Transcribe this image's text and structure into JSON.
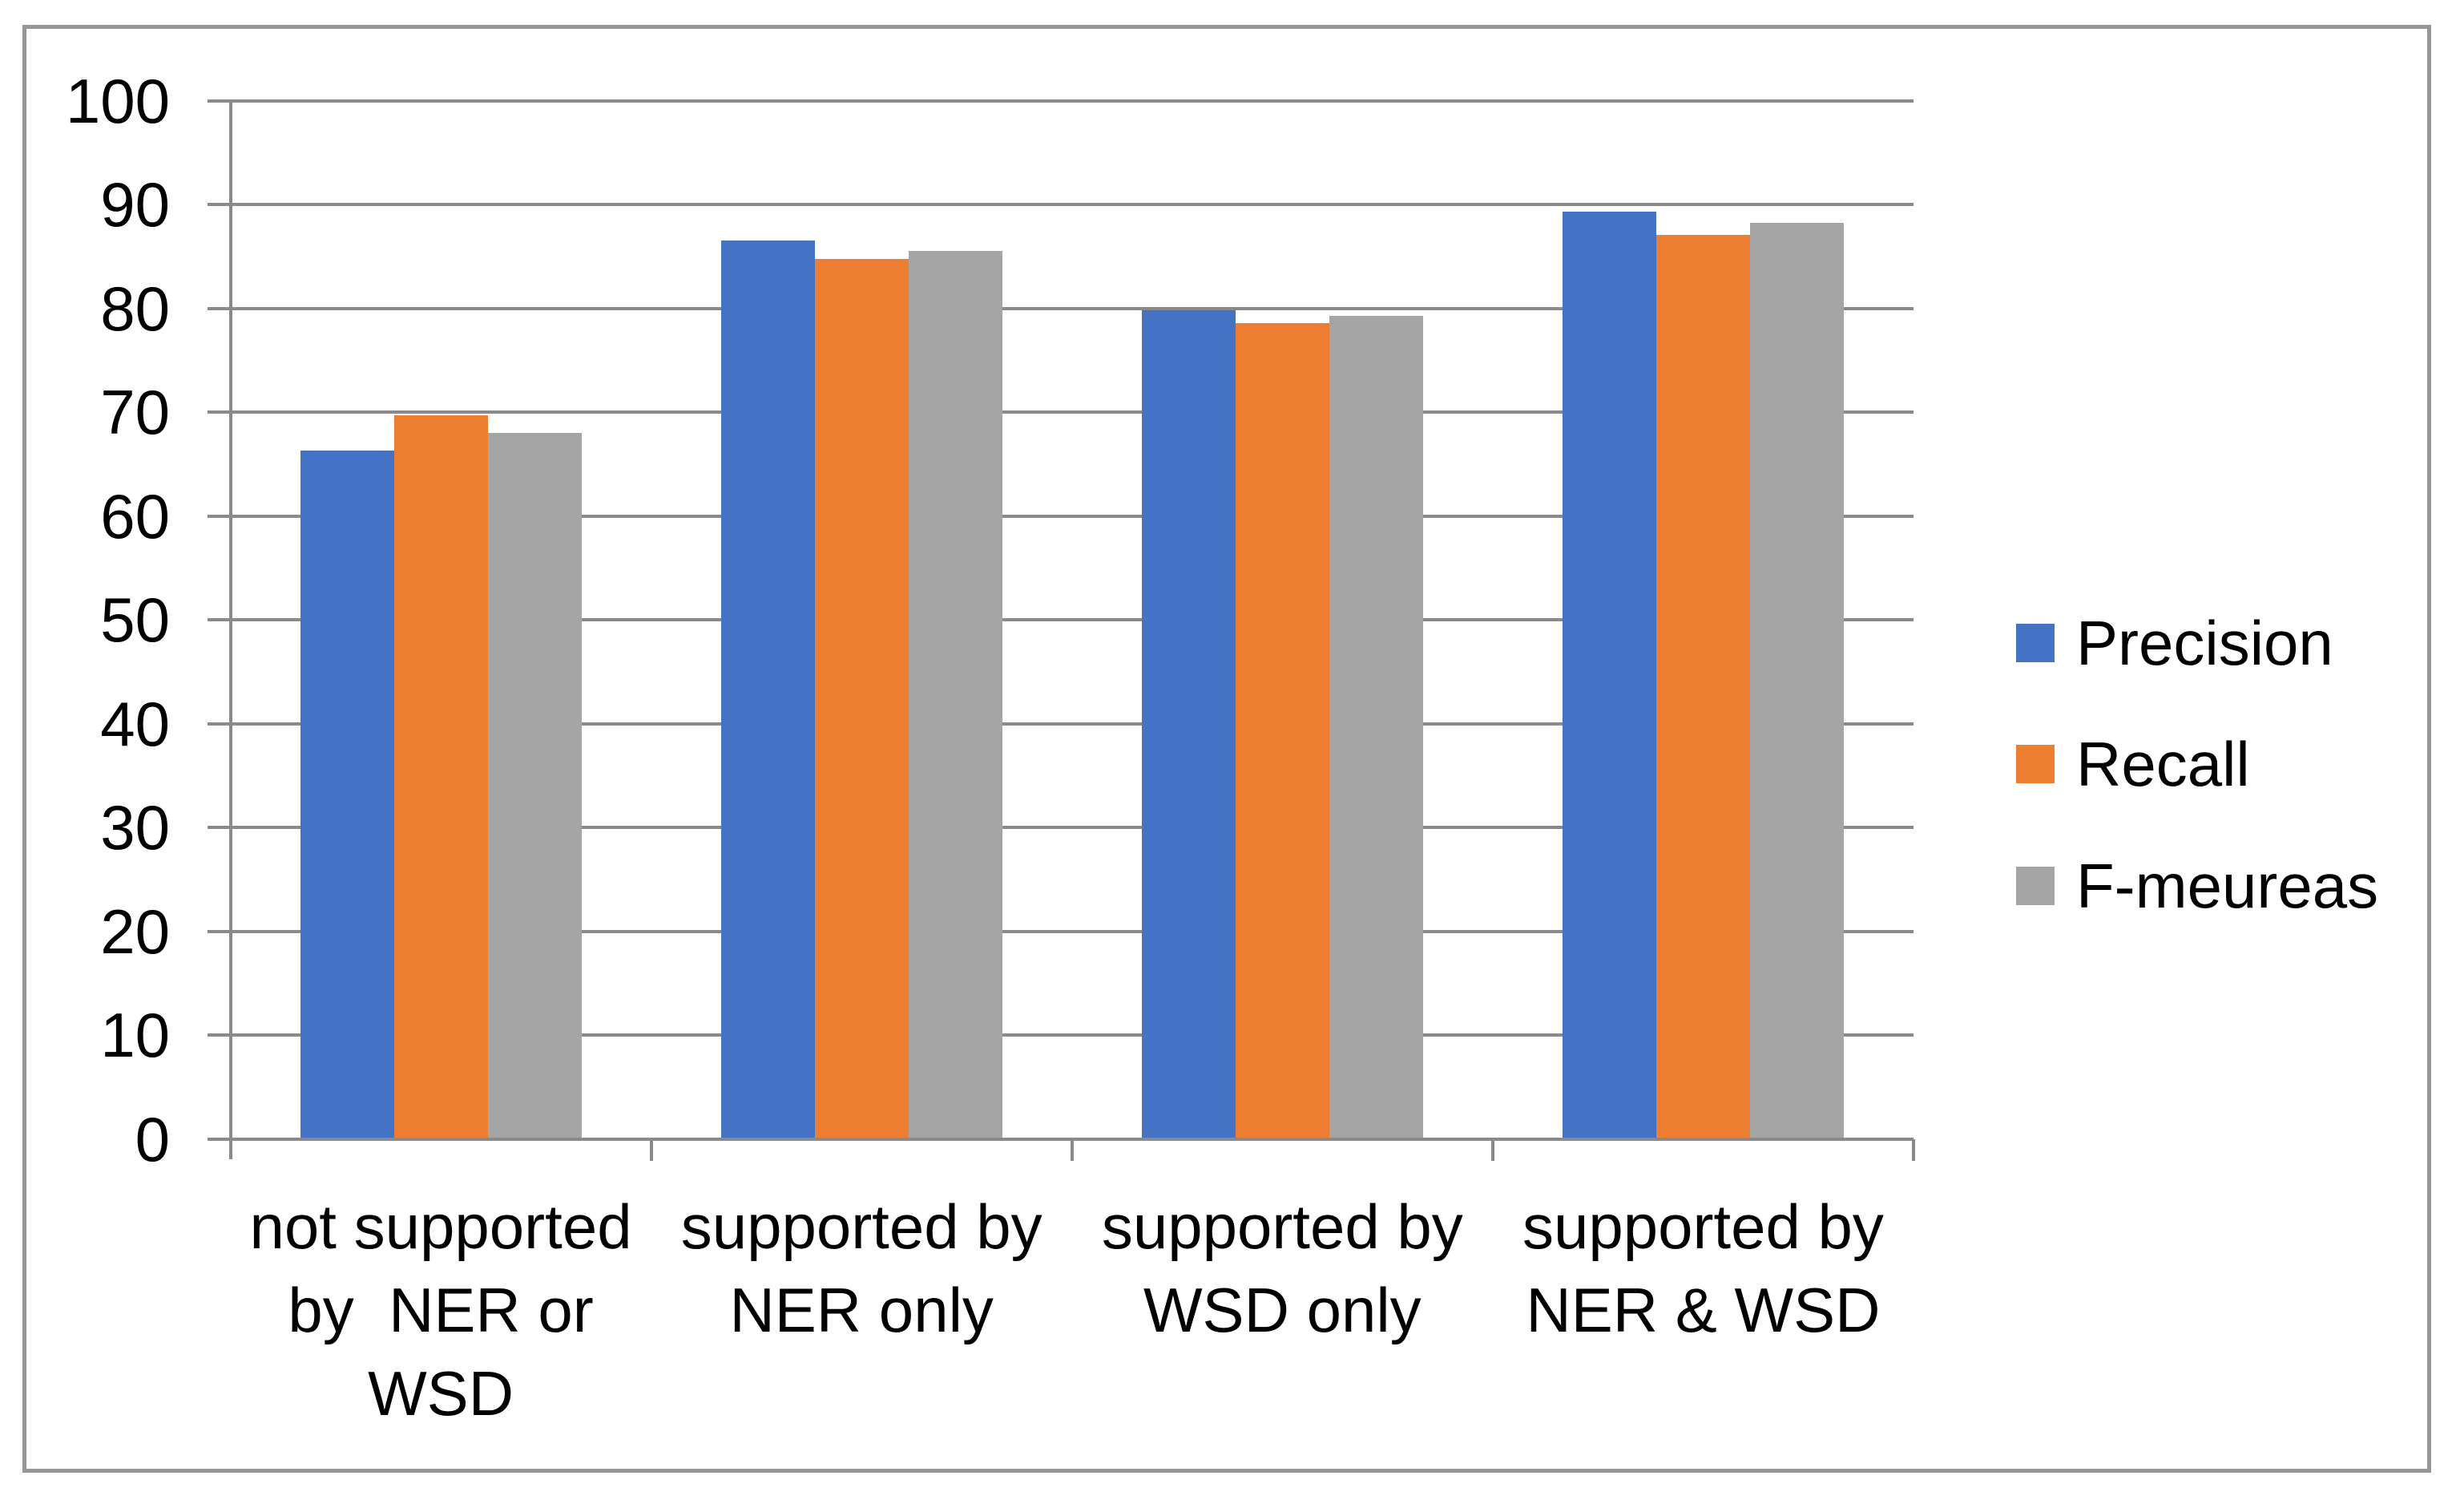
{
  "chart_data": {
    "type": "bar",
    "title": "",
    "categories": [
      "not supported by  NER or WSD",
      "supported by NER only",
      "supported by WSD only",
      "supported by NER & WSD"
    ],
    "category_label_lines": [
      [
        "not supported",
        "by  NER or",
        "WSD"
      ],
      [
        "supported by",
        "NER only"
      ],
      [
        "supported by",
        "WSD only"
      ],
      [
        "supported by",
        "NER & WSD"
      ]
    ],
    "series": [
      {
        "name": "Precision",
        "color": "#4472C4",
        "values": [
          66.3,
          86.5,
          79.8,
          89.3
        ]
      },
      {
        "name": "Recall",
        "color": "#ED7D31",
        "values": [
          69.7,
          84.8,
          78.6,
          87.1
        ]
      },
      {
        "name": "F-meureas",
        "color": "#A5A5A5",
        "values": [
          68.0,
          85.5,
          79.3,
          88.2
        ]
      }
    ],
    "xlabel": "",
    "ylabel": "",
    "ylim": [
      0,
      100
    ],
    "yticks": [
      0,
      10,
      20,
      30,
      40,
      50,
      60,
      70,
      80,
      90,
      100
    ],
    "grid": true,
    "legend_position": "right",
    "axis_color": "#8A8A8A",
    "border_color": "#969696",
    "text_color": "#000000",
    "background_color": "#FFFFFF"
  }
}
